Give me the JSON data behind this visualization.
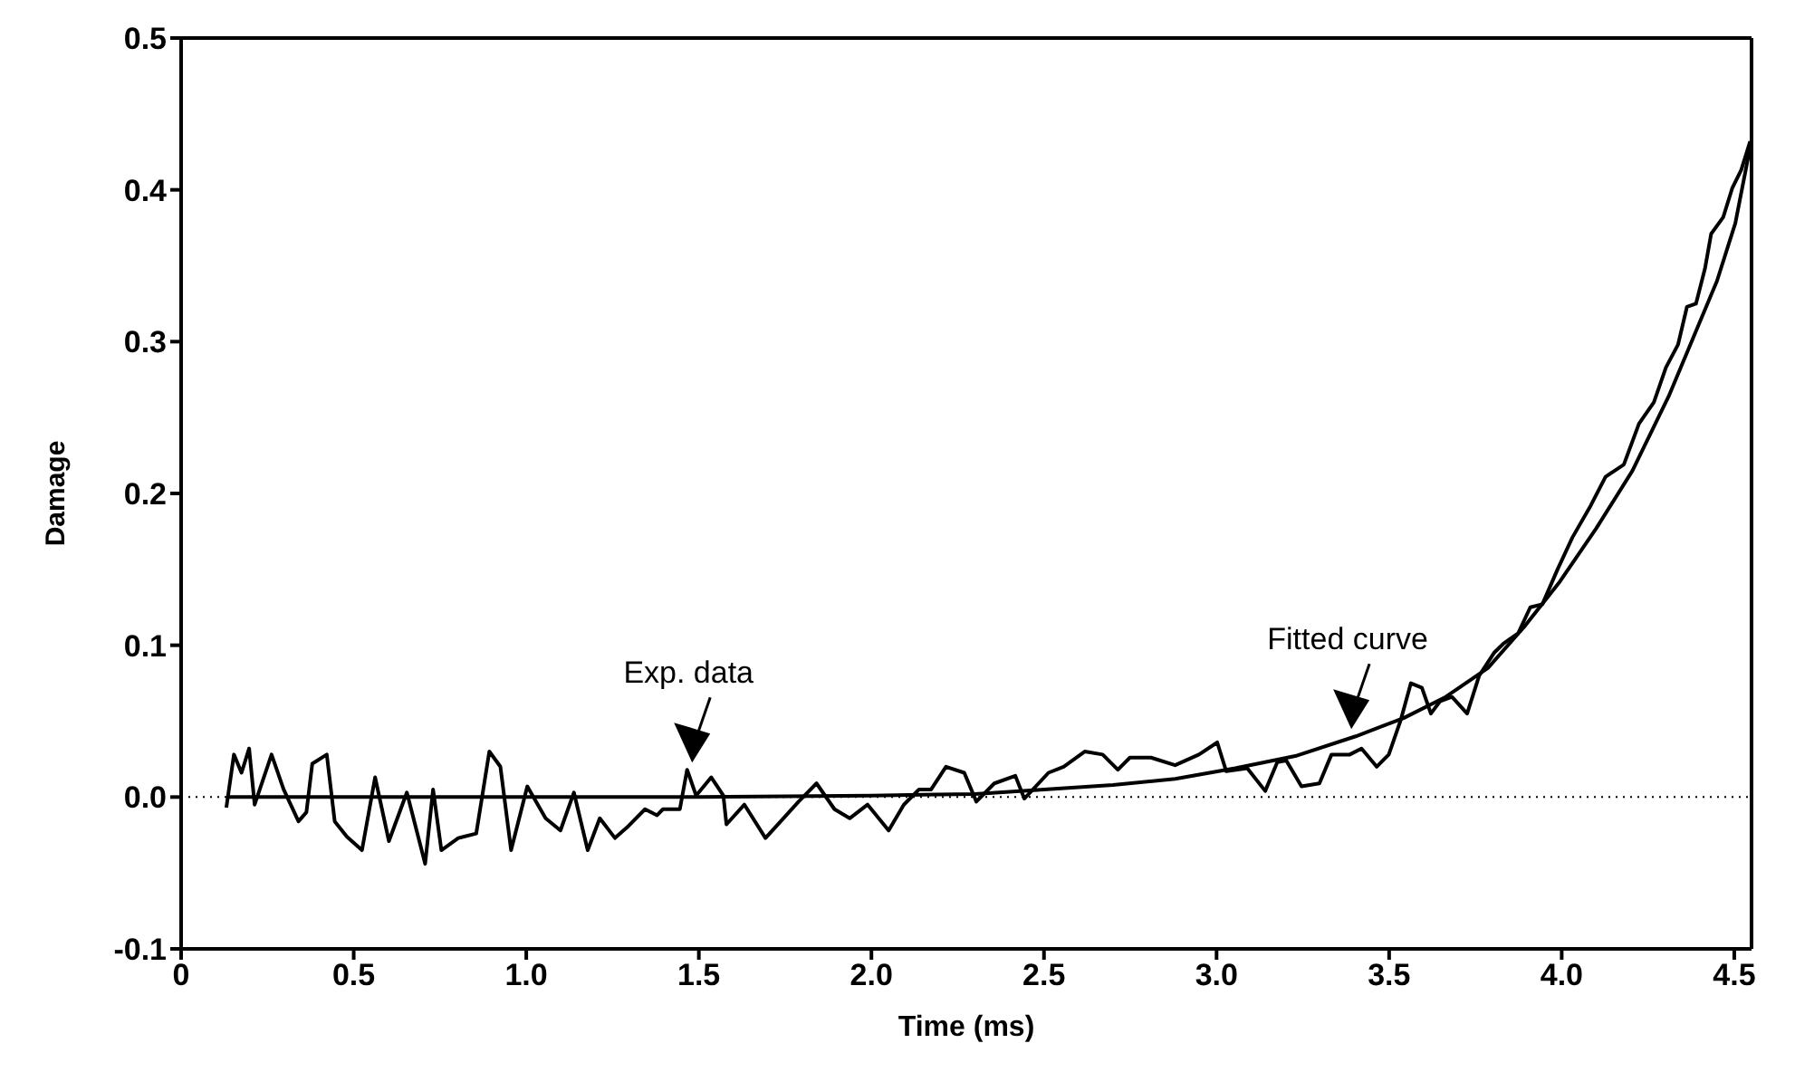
{
  "chart_data": {
    "type": "line",
    "xlabel": "Time (ms)",
    "ylabel": "Damage",
    "xlim": [
      0,
      4.55
    ],
    "ylim": [
      -0.1,
      0.5
    ],
    "xticks": [
      0,
      0.5,
      {
        "value": 1,
        "label": "1.0"
      },
      1.5,
      {
        "value": 2,
        "label": "2.0"
      },
      2.5,
      {
        "value": 3,
        "label": "3.0"
      },
      3.5,
      {
        "value": 4,
        "label": "4.0"
      },
      4.5
    ],
    "yticks": [
      -0.1,
      {
        "value": 0,
        "label": "0.0"
      },
      0.1,
      0.2,
      0.3,
      0.4,
      0.5
    ],
    "grid": false,
    "marker": "none",
    "line_style": "solid",
    "ref_lines": [
      {
        "axis": "y",
        "value": 0,
        "line_style": "dotted",
        "color": "#000000"
      }
    ],
    "annotations": [
      {
        "text": "Exp. data",
        "x": 1.47,
        "y": 0.018
      },
      {
        "text": "Fitted curve",
        "x": 3.38,
        "y": 0.04
      }
    ],
    "series": [
      {
        "type": "line",
        "color": "#000000",
        "x": [
          0.131,
          0.153,
          0.175,
          0.197,
          0.213,
          0.262,
          0.297,
          0.34,
          0.363,
          0.38,
          0.422,
          0.445,
          0.48,
          0.524,
          0.562,
          0.602,
          0.654,
          0.707,
          0.73,
          0.754,
          0.803,
          0.855,
          0.893,
          0.925,
          0.956,
          1.003,
          1.056,
          1.099,
          1.138,
          1.178,
          1.213,
          1.257,
          1.292,
          1.344,
          1.379,
          1.396,
          1.445,
          1.466,
          1.492,
          1.536,
          1.571,
          1.58,
          1.632,
          1.693,
          1.745,
          1.789,
          1.841,
          1.893,
          1.937,
          1.989,
          2.05,
          2.094,
          2.138,
          2.173,
          2.216,
          2.269,
          2.304,
          2.356,
          2.417,
          2.443,
          2.513,
          2.557,
          2.618,
          2.67,
          2.714,
          2.749,
          2.81,
          2.88,
          2.949,
          3.002,
          3.028,
          3.089,
          3.141,
          3.176,
          3.202,
          3.246,
          3.298,
          3.333,
          3.386,
          3.42,
          3.464,
          3.499,
          3.534,
          3.563,
          3.595,
          3.621,
          3.647,
          3.682,
          3.726,
          3.761,
          3.804,
          3.831,
          3.874,
          3.909,
          3.944,
          3.988,
          4.031,
          4.084,
          4.127,
          4.18,
          4.224,
          4.267,
          4.302,
          4.337,
          4.363,
          4.389,
          4.415,
          4.433,
          4.468,
          4.494,
          4.52,
          4.546
        ],
        "values": [
          -0.007,
          0.028,
          0.016,
          0.032,
          -0.005,
          0.028,
          0.005,
          -0.016,
          -0.01,
          0.022,
          0.028,
          -0.016,
          -0.026,
          -0.035,
          0.013,
          -0.029,
          0.003,
          -0.044,
          0.005,
          -0.035,
          -0.027,
          -0.024,
          0.03,
          0.02,
          -0.035,
          0.007,
          -0.014,
          -0.022,
          0.003,
          -0.035,
          -0.014,
          -0.027,
          -0.02,
          -0.008,
          -0.012,
          -0.008,
          -0.008,
          0.018,
          0.001,
          0.013,
          0.001,
          -0.018,
          -0.005,
          -0.027,
          -0.014,
          -0.003,
          0.009,
          -0.008,
          -0.014,
          -0.005,
          -0.022,
          -0.005,
          0.005,
          0.005,
          0.02,
          0.016,
          -0.003,
          0.009,
          0.014,
          -0.001,
          0.016,
          0.02,
          0.03,
          0.028,
          0.018,
          0.026,
          0.026,
          0.021,
          0.028,
          0.036,
          0.017,
          0.019,
          0.004,
          0.023,
          0.024,
          0.007,
          0.009,
          0.028,
          0.028,
          0.032,
          0.02,
          0.028,
          0.051,
          0.075,
          0.072,
          0.055,
          0.063,
          0.066,
          0.055,
          0.08,
          0.095,
          0.101,
          0.108,
          0.125,
          0.127,
          0.15,
          0.171,
          0.192,
          0.211,
          0.219,
          0.246,
          0.26,
          0.283,
          0.298,
          0.323,
          0.325,
          0.348,
          0.371,
          0.382,
          0.401,
          0.413,
          0.432
        ]
      },
      {
        "type": "line",
        "color": "#000000",
        "x": [
          0.131,
          0.5,
          1.0,
          1.5,
          2.0,
          2.3,
          2.5,
          2.7,
          2.88,
          3.054,
          3.228,
          3.403,
          3.542,
          3.664,
          3.786,
          3.891,
          3.995,
          4.1,
          4.205,
          4.31,
          4.38,
          4.45,
          4.503,
          4.546
        ],
        "values": [
          0,
          0,
          0,
          0,
          0.001,
          0.002,
          0.005,
          0.008,
          0.012,
          0.019,
          0.027,
          0.04,
          0.052,
          0.066,
          0.085,
          0.112,
          0.142,
          0.177,
          0.215,
          0.264,
          0.302,
          0.34,
          0.378,
          0.428
        ]
      }
    ]
  }
}
